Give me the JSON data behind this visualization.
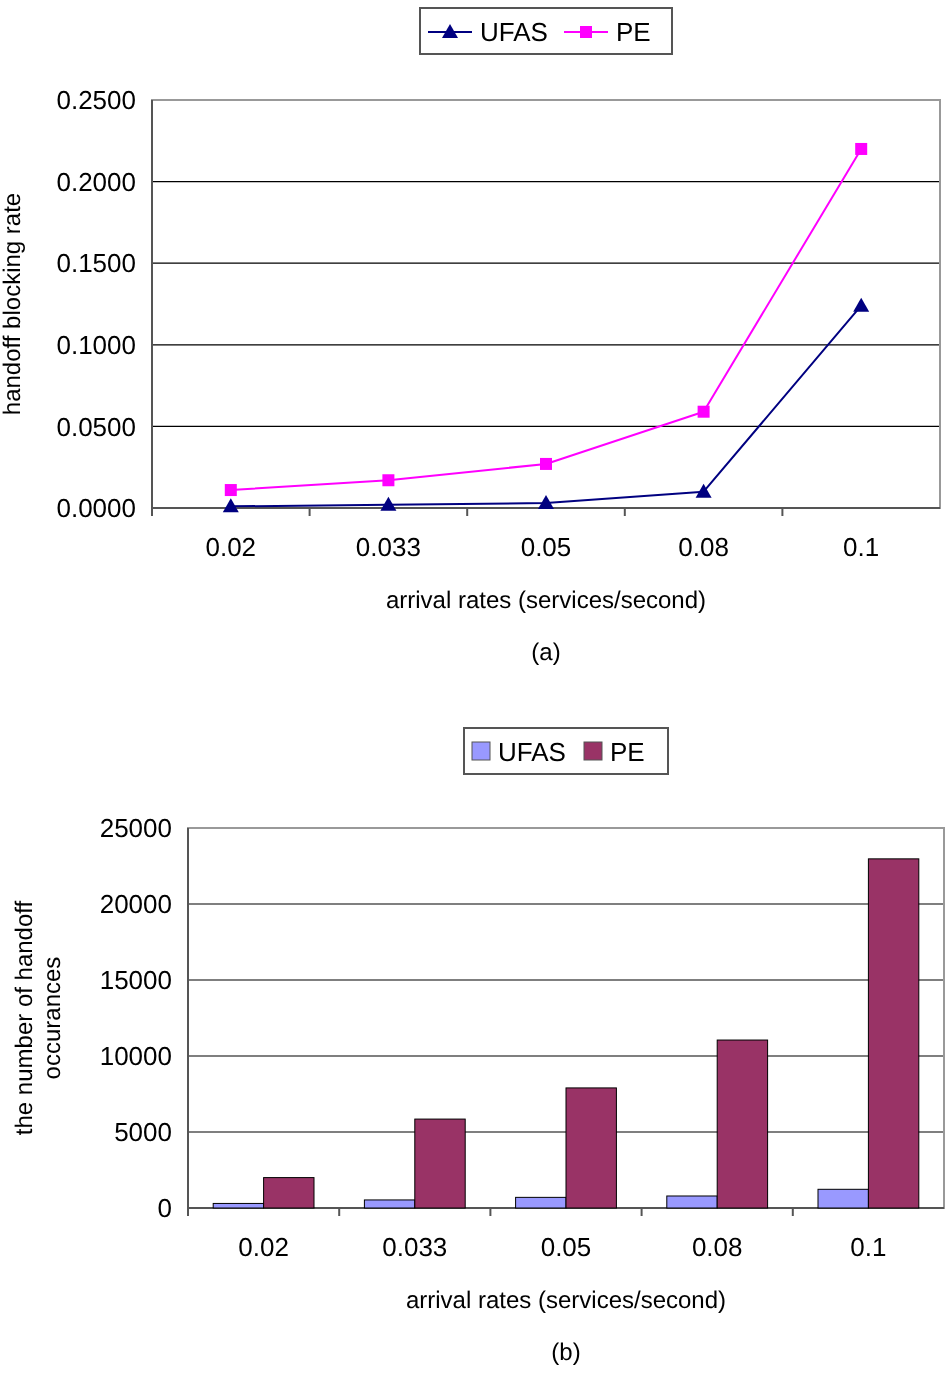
{
  "chart_data": [
    {
      "type": "line",
      "xlabel": "arrival rates (services/second)",
      "ylabel": "handoff blocking rate",
      "categories": [
        "0.02",
        "0.033",
        "0.05",
        "0.08",
        "0.1"
      ],
      "series": [
        {
          "name": "UFAS",
          "color": "#000080",
          "marker": "triangle",
          "values": [
            0.001,
            0.002,
            0.003,
            0.01,
            0.124
          ]
        },
        {
          "name": "PE",
          "color": "#ff00ff",
          "marker": "square",
          "values": [
            0.011,
            0.017,
            0.027,
            0.059,
            0.22
          ]
        }
      ],
      "ylim": [
        0,
        0.25
      ],
      "yticks": [
        {
          "value": 0,
          "label": "0.0000"
        },
        {
          "value": 0.05,
          "label": "0.0500"
        },
        {
          "value": 0.1,
          "label": "0.1000"
        },
        {
          "value": 0.15,
          "label": "0.1500"
        },
        {
          "value": 0.2,
          "label": "0.2000"
        },
        {
          "value": 0.25,
          "label": "0.2500"
        }
      ],
      "grid": "y",
      "legend": "top",
      "annotations": [
        "(a)"
      ]
    },
    {
      "type": "bar",
      "xlabel": "arrival rates (services/second)",
      "ylabel": "the number of handoff occurances",
      "categories": [
        "0.02",
        "0.033",
        "0.05",
        "0.08",
        "0.1"
      ],
      "series": [
        {
          "name": "UFAS",
          "color": "#9999ff",
          "values": [
            300,
            530,
            700,
            790,
            1230
          ]
        },
        {
          "name": "PE",
          "color": "#993366",
          "values": [
            2000,
            5850,
            7900,
            11050,
            22970
          ]
        }
      ],
      "ylim": [
        0,
        25000
      ],
      "yticks": [
        0,
        5000,
        10000,
        15000,
        20000,
        25000
      ],
      "grid": "y",
      "legend": "top",
      "annotations": [
        "(b)"
      ]
    }
  ]
}
